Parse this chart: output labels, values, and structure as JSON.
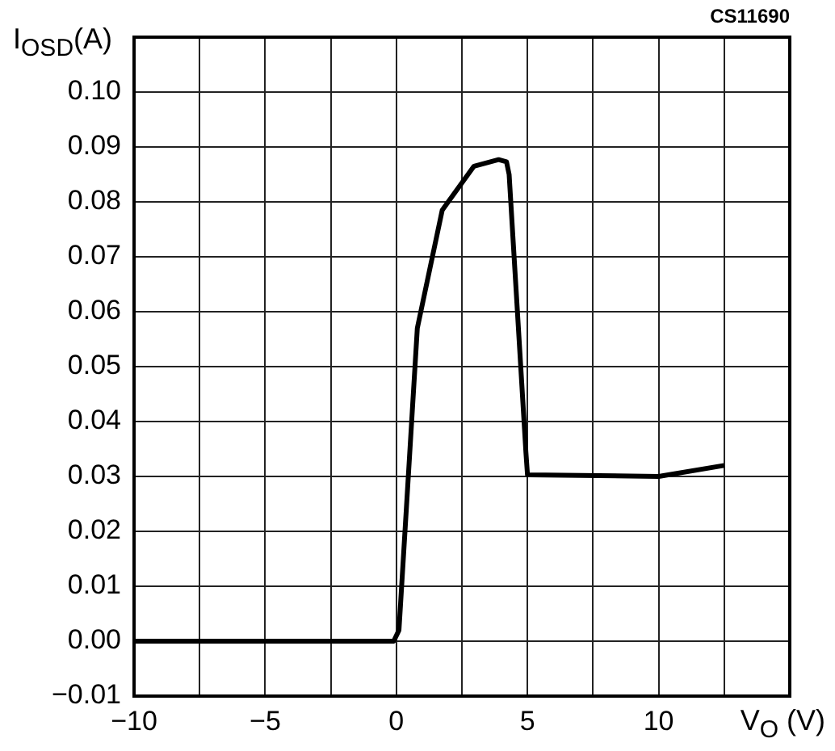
{
  "chart_data": {
    "type": "line",
    "xlabel": "V$_{O}$ (V)",
    "ylabel": "I$_{OSD}$(A)",
    "annotations": [
      "CS11690"
    ],
    "x": [
      -10,
      -0.1,
      0.1,
      0.8,
      1.75,
      2.96,
      3.9,
      4.2,
      4.3,
      4.94,
      5.0,
      10,
      12.5
    ],
    "series": [
      {
        "color": "#000000",
        "values": [
          0,
          0,
          0.002,
          0.057,
          0.0785,
          0.0865,
          0.0877,
          0.0873,
          0.085,
          0.0344,
          0.0303,
          0.03,
          0.032
        ]
      }
    ],
    "xlim": [
      -10,
      15
    ],
    "xticks": [
      -10,
      {
        "value": -7.5,
        "label": null
      },
      -5,
      {
        "value": -2.5,
        "label": null
      },
      0,
      {
        "value": 2.5,
        "label": null
      },
      5,
      {
        "value": 7.5,
        "label": null
      },
      10,
      {
        "value": 12.5,
        "label": null
      }
    ],
    "ylim": [
      -0.01,
      0.11
    ],
    "yticks": [
      {
        "value": -0.01,
        "label": "−0.01"
      },
      {
        "value": 0,
        "label": "0.00"
      },
      {
        "value": 0.01,
        "label": "0.01"
      },
      {
        "value": 0.02,
        "label": "0.02"
      },
      {
        "value": 0.03,
        "label": "0.03"
      },
      {
        "value": 0.04,
        "label": "0.04"
      },
      {
        "value": 0.05,
        "label": "0.05"
      },
      {
        "value": 0.06,
        "label": "0.06"
      },
      {
        "value": 0.07,
        "label": "0.07"
      },
      {
        "value": 0.08,
        "label": "0.08"
      },
      {
        "value": 0.09,
        "label": "0.09"
      },
      {
        "value": 0.1,
        "label": "0.10"
      }
    ],
    "grid": true,
    "legend": false,
    "marker": "none",
    "line_style": "solid"
  }
}
